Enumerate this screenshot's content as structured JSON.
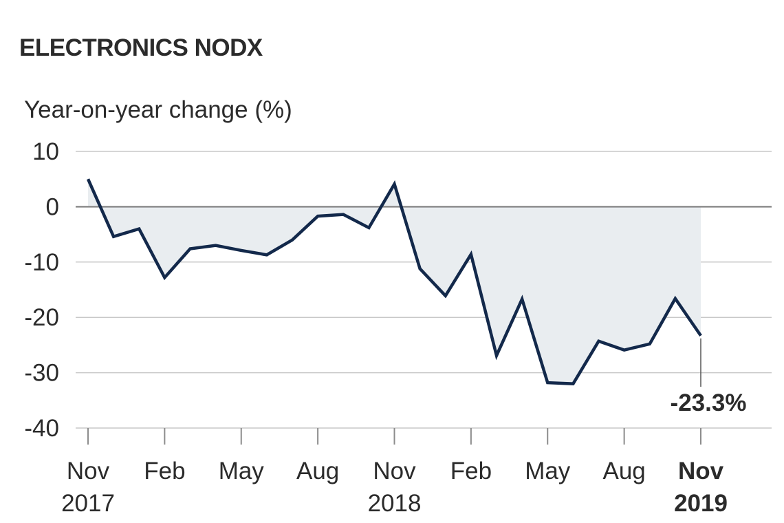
{
  "chart_data": {
    "type": "line",
    "title": "ELECTRONICS NODX",
    "ylabel": "Year-on-year change (%)",
    "xlabel": "",
    "ylim": [
      -40,
      10
    ],
    "yticks": [
      10,
      0,
      -10,
      -20,
      -30,
      -40
    ],
    "grid": true,
    "x": [
      "2017-11",
      "2017-12",
      "2018-01",
      "2018-02",
      "2018-03",
      "2018-04",
      "2018-05",
      "2018-06",
      "2018-07",
      "2018-08",
      "2018-09",
      "2018-10",
      "2018-11",
      "2018-12",
      "2019-01",
      "2019-02",
      "2019-03",
      "2019-04",
      "2019-05",
      "2019-06",
      "2019-07",
      "2019-08",
      "2019-09",
      "2019-10",
      "2019-11"
    ],
    "xticks": [
      {
        "x": "2017-11",
        "label": "Nov",
        "year": "2017",
        "bold": false
      },
      {
        "x": "2018-02",
        "label": "Feb",
        "year": "",
        "bold": false
      },
      {
        "x": "2018-05",
        "label": "May",
        "year": "",
        "bold": false
      },
      {
        "x": "2018-08",
        "label": "Aug",
        "year": "",
        "bold": false
      },
      {
        "x": "2018-11",
        "label": "Nov",
        "year": "2018",
        "bold": false
      },
      {
        "x": "2019-02",
        "label": "Feb",
        "year": "",
        "bold": false
      },
      {
        "x": "2019-05",
        "label": "May",
        "year": "",
        "bold": false
      },
      {
        "x": "2019-08",
        "label": "Aug",
        "year": "",
        "bold": false
      },
      {
        "x": "2019-11",
        "label": "Nov",
        "year": "2019",
        "bold": true
      }
    ],
    "series": [
      {
        "values": [
          5.0,
          -5.4,
          -4.0,
          -12.8,
          -7.6,
          -7.0,
          -7.9,
          -8.7,
          -6.0,
          -1.7,
          -1.4,
          -3.8,
          4.1,
          -11.2,
          -16.1,
          -8.6,
          -26.9,
          -16.7,
          -31.8,
          -32.0,
          -24.3,
          -25.9,
          -24.8,
          -16.6,
          -23.3
        ]
      }
    ],
    "annotation": {
      "x": "2019-11",
      "value": -23.3,
      "label": "-23.3%"
    },
    "colors": {
      "line": "#13294b",
      "fill": "#e9edf0",
      "grid": "#c8c8c8",
      "zero_line": "#8c8c8c",
      "text": "#2b2b2b"
    }
  }
}
